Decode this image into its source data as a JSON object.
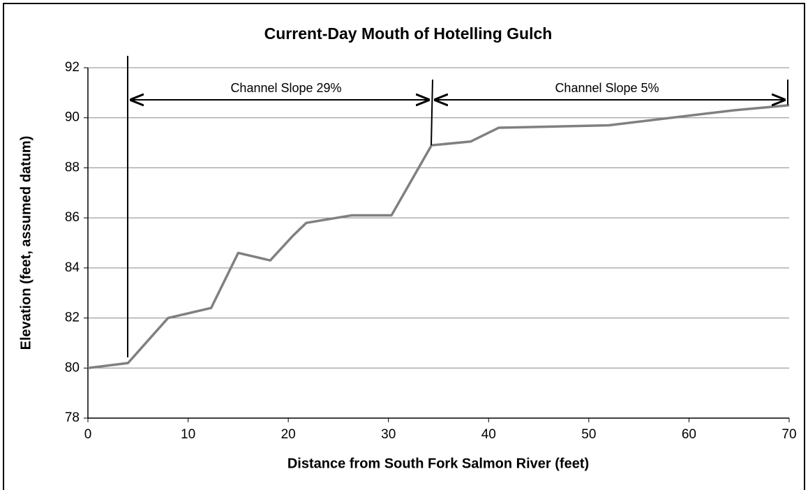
{
  "chart_data": {
    "type": "line",
    "title": "Current-Day Mouth of Hotelling Gulch",
    "x_label": "Distance from South Fork Salmon River (feet)",
    "y_label": "Elevation (feet, assumed datum)",
    "x": [
      0,
      4,
      8,
      12.3,
      15,
      18.2,
      20.5,
      21.8,
      26.3,
      30.3,
      34.3,
      38.2,
      41,
      52,
      64.5,
      70
    ],
    "values": [
      80,
      80.2,
      82,
      82.4,
      84.6,
      84.3,
      85.3,
      85.8,
      86.1,
      86.1,
      88.9,
      89.05,
      89.6,
      89.7,
      90.3,
      90.5
    ],
    "color": "#808080",
    "xlim": [
      0,
      70
    ],
    "xticks": [
      0,
      10,
      20,
      30,
      40,
      50,
      60,
      70
    ],
    "ylim": [
      78,
      92
    ],
    "yticks": [
      78,
      80,
      82,
      84,
      86,
      88,
      90,
      92
    ],
    "grid": true,
    "annotations": [
      "Channel Slope 29%",
      "Channel Slope 5%"
    ]
  }
}
